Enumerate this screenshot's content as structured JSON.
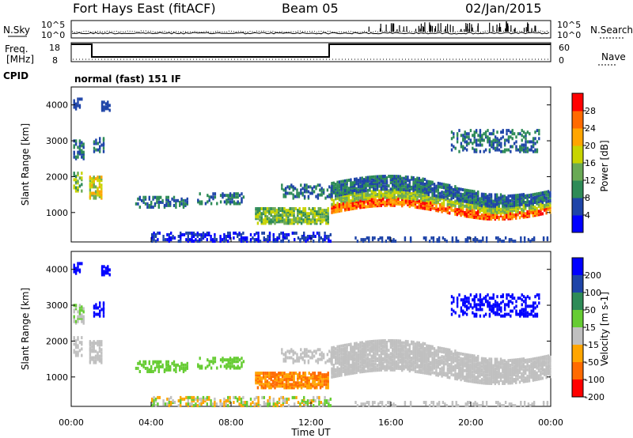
{
  "header": {
    "radar": "Fort Hays East (fitACF)",
    "beam": "Beam 05",
    "date": "02/Jan/2015",
    "mode": "normal (fast) 151 IF"
  },
  "left_labels": {
    "nsky": "N.Sky",
    "freq": "Freq.",
    "freq_unit": "[MHz]",
    "cpid": "CPID"
  },
  "right_labels": {
    "nsearch": "N.Search",
    "nave": "Nave"
  },
  "noise_ticks_left": [
    "10^5",
    "10^0"
  ],
  "noise_ticks_right": [
    "10^5",
    "10^0"
  ],
  "freq_ticks_left": [
    "18",
    "8"
  ],
  "nave_ticks_right": [
    "60",
    "0"
  ],
  "chart_data": [
    {
      "type": "heatmap",
      "panel": "power",
      "ylabel": "Slant Range [km]",
      "yticks": [
        "1000",
        "2000",
        "3000",
        "4000"
      ],
      "ylim": [
        180,
        4500
      ],
      "colorbar_label": "Power [dB]",
      "colorbar_ticks": [
        "4",
        "8",
        "12",
        "16",
        "20",
        "24",
        "28"
      ],
      "colors": [
        "#0000ff",
        "#1e44a8",
        "#2e8b57",
        "#6aaa55",
        "#c8d400",
        "#ffa500",
        "#ff6a00",
        "#ff0000"
      ]
    },
    {
      "type": "heatmap",
      "panel": "velocity",
      "ylabel": "Slant Range [km]",
      "yticks": [
        "1000",
        "2000",
        "3000",
        "4000"
      ],
      "ylim": [
        180,
        4500
      ],
      "colorbar_label": "Velocity [m s-1]",
      "colorbar_ticks": [
        "200",
        "100",
        "50",
        "15",
        "-15",
        "-50",
        "-100",
        "-200"
      ],
      "colors": [
        "#0000ff",
        "#1e44a8",
        "#2e8b57",
        "#66cc33",
        "#c0c0c0",
        "#ffa500",
        "#ff6a00",
        "#ff0000"
      ],
      "xlabel": "Time UT",
      "xticks": [
        "00:00",
        "04:00",
        "08:00",
        "12:00",
        "16:00",
        "20:00",
        "00:00"
      ],
      "xlim_hours": [
        0,
        24
      ]
    }
  ]
}
